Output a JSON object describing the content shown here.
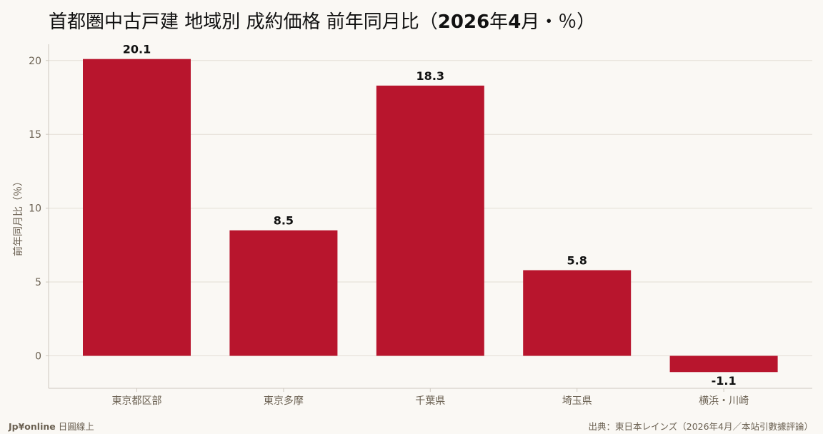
{
  "title": {
    "main": "首都圏中古戸建 地域別 成約価格 前年同月比（",
    "bold_year": "2026",
    "year_suffix": "年",
    "bold_month": "4",
    "month_suffix": "月・％）"
  },
  "footer": {
    "brand": "Jp¥online",
    "brand_suffix": " 日圓線上",
    "source": "出典：東日本レインズ（2026年4月／本站引數據評論）"
  },
  "colors": {
    "bar": "#b8152d",
    "grid": "#e3ded5",
    "axis": "#cfc9bf",
    "tick_text": "#6b6152",
    "value_text": "#111111"
  },
  "chart_data": {
    "type": "bar",
    "title": "首都圏中古戸建 地域別 成約価格 前年同月比（2026年4月・％）",
    "categories": [
      "東京都区部",
      "東京多摩",
      "千葉県",
      "埼玉県",
      "横浜・川崎"
    ],
    "values": [
      20.1,
      8.5,
      18.3,
      5.8,
      -1.1
    ],
    "value_labels": [
      "20.1",
      "8.5",
      "18.3",
      "5.8",
      "-1.1"
    ],
    "ylabel": "前年同月比（％）",
    "xlabel": "",
    "ylim": [
      -2.2,
      21.1
    ],
    "yticks": [
      0,
      5,
      10,
      15,
      20
    ],
    "ytick_labels": [
      "0",
      "5",
      "10",
      "15",
      "20"
    ],
    "grid": true,
    "legend": "none"
  }
}
